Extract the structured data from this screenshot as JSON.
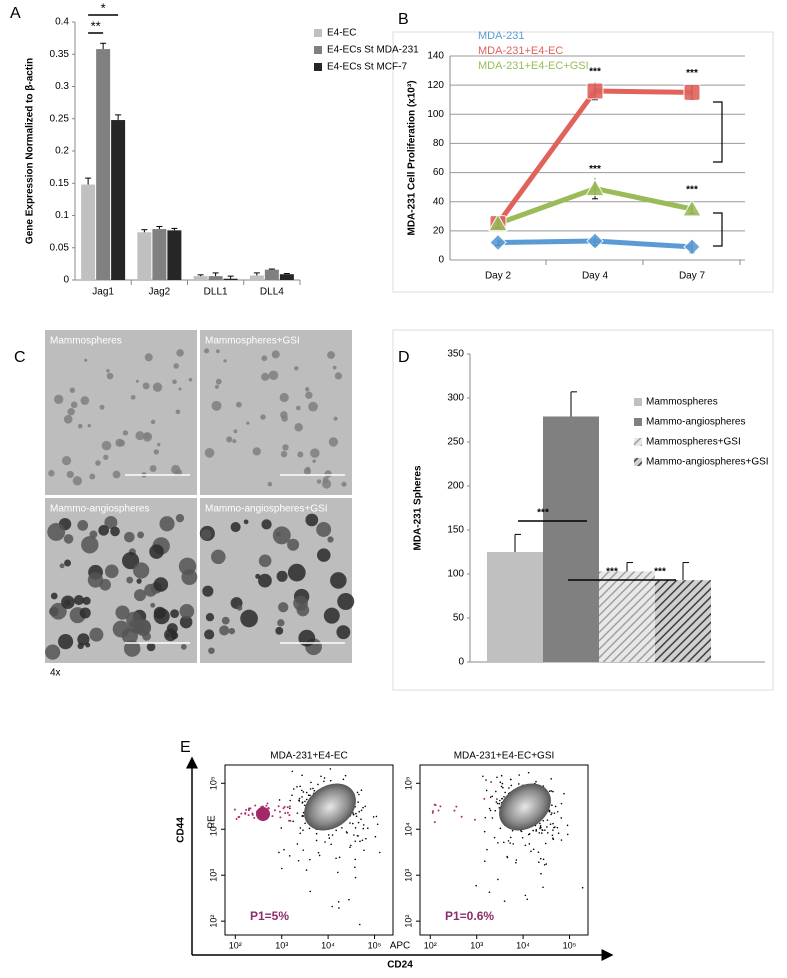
{
  "chart_data": [
    {
      "type": "bar",
      "panel": "A",
      "ylabel": "Gene Expression Normalized to β-actin",
      "categories": [
        "Jag1",
        "Jag2",
        "DLL1",
        "DLL4"
      ],
      "series": [
        {
          "name": "E4-EC",
          "color": "#c0c0c0",
          "values": [
            0.148,
            0.074,
            0.006,
            0.007
          ],
          "errors": [
            0.01,
            0.004,
            0.002,
            0.004
          ]
        },
        {
          "name": "E4-ECs St MDA-231",
          "color": "#808080",
          "values": [
            0.358,
            0.079,
            0.006,
            0.016
          ],
          "errors": [
            0.009,
            0.004,
            0.005,
            0.001
          ]
        },
        {
          "name": "E4-ECs St MCF-7",
          "color": "#262626",
          "values": [
            0.248,
            0.077,
            0.002,
            0.009
          ],
          "errors": [
            0.008,
            0.003,
            0.004,
            0.001
          ]
        }
      ],
      "ylim": [
        0,
        0.4
      ],
      "yticks": [
        0,
        0.05,
        0.1,
        0.15,
        0.2,
        0.25,
        0.3,
        0.35,
        0.4
      ],
      "annotations": [
        "*",
        "**"
      ]
    },
    {
      "type": "line",
      "panel": "B",
      "ylabel": "MDA-231 Cell Proliferation (x10³)",
      "categories": [
        "Day 2",
        "Day 4",
        "Day 7"
      ],
      "series": [
        {
          "name": "MDA-231",
          "color": "#5b9bd5",
          "marker": "diamond",
          "values": [
            12,
            13,
            9
          ],
          "errors": [
            2,
            3,
            4
          ]
        },
        {
          "name": "MDA-231+E4-EC",
          "color": "#e0625b",
          "marker": "square",
          "values": [
            25,
            116,
            115
          ],
          "errors": [
            3,
            6,
            5
          ]
        },
        {
          "name": "MDA-231+E4-EC+GSI",
          "color": "#9bbb59",
          "marker": "triangle",
          "values": [
            25,
            49,
            35
          ],
          "errors": [
            3,
            7,
            3
          ]
        }
      ],
      "ylim": [
        0,
        140
      ],
      "yticks": [
        0,
        20,
        40,
        60,
        80,
        100,
        120,
        140
      ],
      "grid": true,
      "annotations": [
        "***",
        "***",
        "***",
        "***"
      ]
    },
    {
      "type": "image_grid",
      "panel": "C",
      "images": [
        "Mammospheres",
        "Mammospheres+GSI",
        "Mammo-angiospheres",
        "Mammo-angiospheres+GSI"
      ],
      "magnification": "4x"
    },
    {
      "type": "bar",
      "panel": "D",
      "ylabel": "MDA-231 Spheres",
      "series": [
        {
          "name": "Mammospheres",
          "color": "#c0c0c0",
          "hatch": false,
          "values": [
            125
          ],
          "errors": [
            20
          ]
        },
        {
          "name": "Mammo-angiospheres",
          "color": "#808080",
          "hatch": false,
          "values": [
            279
          ],
          "errors": [
            28
          ]
        },
        {
          "name": "Mammospheres+GSI",
          "color": "#a0a0a0",
          "hatch": true,
          "values": [
            103
          ],
          "errors": [
            10
          ]
        },
        {
          "name": "Mammo-angiospheres+GSI",
          "color": "#404040",
          "hatch": true,
          "values": [
            93
          ],
          "errors": [
            20
          ]
        }
      ],
      "ylim": [
        0,
        350
      ],
      "yticks": [
        0,
        50,
        100,
        150,
        200,
        250,
        300,
        350
      ],
      "annotations": [
        "***",
        "***",
        "***"
      ]
    },
    {
      "type": "flow",
      "panel": "E",
      "plots": [
        {
          "title": "MDA-231+E4-EC",
          "gate": "P1=5%"
        },
        {
          "title": "MDA-231+E4-EC+GSI",
          "gate": "P1=0.6%"
        }
      ],
      "xlabel": "APC",
      "ylabel": "PE",
      "xmarker": "CD24",
      "ymarker": "CD44",
      "log": true,
      "xlim": [
        60,
        250000
      ],
      "ylim": [
        50,
        250000
      ],
      "xticks": [
        {
          "value": 100,
          "label": "10²"
        },
        {
          "value": 1000,
          "label": "10³"
        },
        {
          "value": 10000,
          "label": "10⁴"
        },
        {
          "value": 100000,
          "label": "10⁵"
        }
      ],
      "yticks": [
        {
          "value": 100,
          "label": "10²"
        },
        {
          "value": 1000,
          "label": "10³"
        },
        {
          "value": 10000,
          "label": "10⁴"
        },
        {
          "value": 100000,
          "label": "10⁵"
        }
      ]
    }
  ]
}
